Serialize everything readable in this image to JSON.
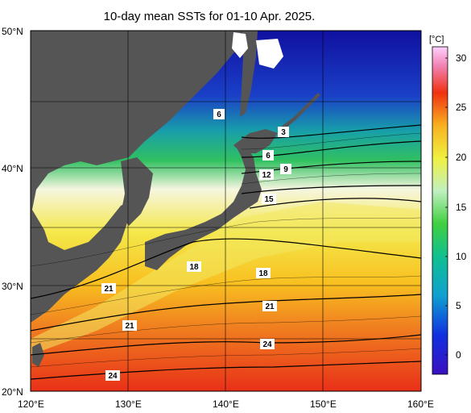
{
  "title": "10-day mean SSTs for 01-10 Apr. 2025.",
  "map": {
    "lat_labels": [
      "50°N",
      "40°N",
      "30°N",
      "20°N"
    ],
    "lon_labels": [
      "120°E",
      "130°E",
      "140°E",
      "150°E",
      "160°E"
    ],
    "lat_range": [
      20,
      50
    ],
    "lon_range": [
      120,
      160
    ],
    "contour_labels": [
      "3",
      "6",
      "6",
      "9",
      "12",
      "15",
      "18",
      "18",
      "21",
      "21",
      "21",
      "24",
      "24"
    ]
  },
  "colorbar": {
    "unit": "[°C]",
    "ticks": [
      "30",
      "25",
      "20",
      "15",
      "10",
      "5",
      "0"
    ],
    "range": [
      -3,
      31
    ]
  },
  "colors": {
    "land": "#555555",
    "cold": "#2020c0",
    "cool": "#20c0a0",
    "mild": "#40d040",
    "warm": "#f0e040",
    "hot": "#f04020"
  }
}
